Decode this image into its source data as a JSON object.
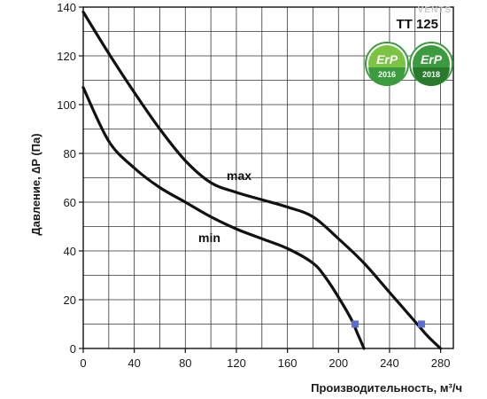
{
  "brand": "VENTS",
  "model": "TT 125",
  "badges": [
    {
      "text": "ErP",
      "year": "2016"
    },
    {
      "text": "ErP",
      "year": "2018"
    }
  ],
  "colors": {
    "curve": "#111111",
    "grid": "#333333",
    "marker": "#5b6fd1",
    "badge_green": "#3c9a3f",
    "badge_light": "#7cc243"
  },
  "chart_data": {
    "type": "line",
    "title": "TT 125",
    "xlabel": "Производительность,  м³/ч",
    "ylabel": "Давление, ∆P (Па)",
    "xlim": [
      0,
      290
    ],
    "ylim": [
      0,
      140
    ],
    "x_ticks": [
      0,
      40,
      80,
      120,
      160,
      200,
      240,
      280
    ],
    "y_ticks": [
      0,
      20,
      40,
      60,
      80,
      100,
      120,
      140
    ],
    "grid_x_step": 20,
    "grid_y_step": 10,
    "grid": true,
    "series": [
      {
        "name": "max",
        "x": [
          0,
          20,
          40,
          60,
          80,
          100,
          120,
          140,
          160,
          180,
          200,
          220,
          240,
          260,
          270,
          280
        ],
        "y": [
          138,
          121,
          105,
          90,
          77,
          68,
          64,
          61,
          58,
          54,
          45,
          35,
          23,
          11,
          5,
          0
        ]
      },
      {
        "name": "min",
        "x": [
          0,
          20,
          40,
          60,
          80,
          100,
          120,
          140,
          160,
          180,
          190,
          200,
          210,
          215,
          220
        ],
        "y": [
          107,
          85,
          74,
          66,
          60,
          54,
          49,
          45,
          41,
          35,
          29,
          21,
          12,
          6,
          0
        ]
      }
    ],
    "markers": [
      {
        "series": "max",
        "x": 265,
        "y": 10
      },
      {
        "series": "min",
        "x": 213,
        "y": 10
      }
    ]
  }
}
